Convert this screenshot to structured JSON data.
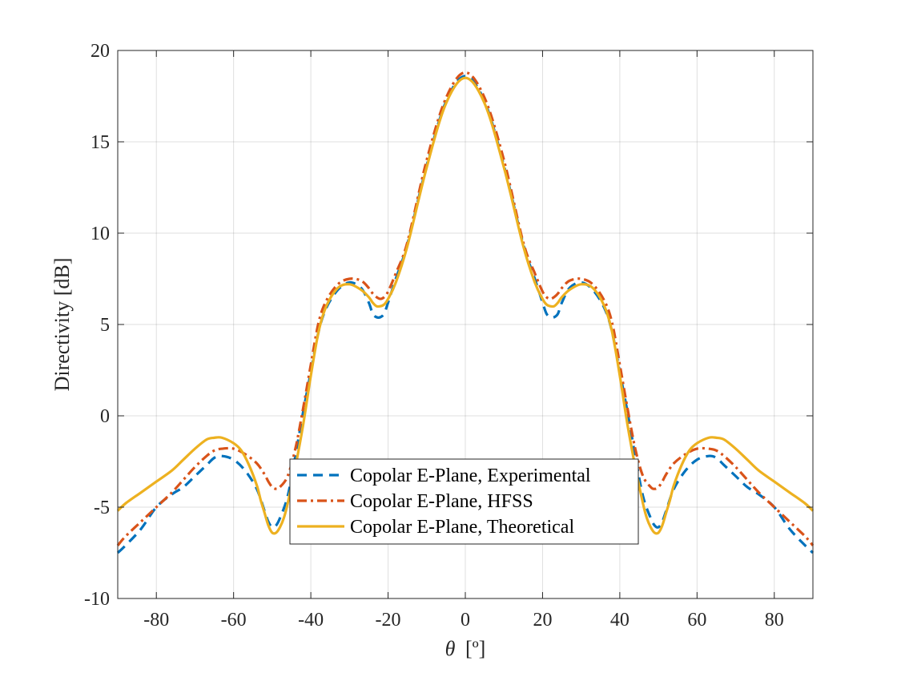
{
  "chart_data": {
    "type": "line",
    "xlabel_symbol": "θ",
    "xlabel_unit": "[º]",
    "ylabel": "Directivity [dB]",
    "xlim": [
      -90,
      90
    ],
    "ylim": [
      -10,
      20
    ],
    "xticks": [
      -80,
      -60,
      -40,
      -20,
      0,
      20,
      40,
      60,
      80
    ],
    "xtick_labels": [
      "-80",
      "-60",
      "-40",
      "-20",
      "0",
      "20",
      "40",
      "60",
      "80"
    ],
    "yticks": [
      -10,
      -5,
      0,
      5,
      10,
      15,
      20
    ],
    "ytick_labels": [
      "-10",
      "-5",
      "0",
      "5",
      "10",
      "15",
      "20"
    ],
    "grid": true,
    "legend_position": "lower-center",
    "series": [
      {
        "name": "Copolar E-Plane, Experimental",
        "color": "#0072BD",
        "dash": "dashed",
        "x": [
          0,
          5,
          10,
          15,
          18,
          20,
          21,
          22,
          23,
          24,
          25,
          27,
          30,
          33,
          36,
          38,
          40,
          42,
          44,
          46,
          48,
          49,
          50,
          51,
          52,
          54,
          57,
          60,
          63,
          65,
          67,
          70,
          73,
          76,
          80,
          84,
          88,
          90
        ],
        "y": [
          18.6,
          17.2,
          13.7,
          9.4,
          7.5,
          6.2,
          5.6,
          5.4,
          5.4,
          5.6,
          6.2,
          7.0,
          7.3,
          6.9,
          5.9,
          4.6,
          2.4,
          0.2,
          -2.2,
          -4.4,
          -5.6,
          -6.0,
          -6.1,
          -5.8,
          -5.2,
          -4.0,
          -3.0,
          -2.4,
          -2.2,
          -2.3,
          -2.7,
          -3.3,
          -3.9,
          -4.3,
          -5.0,
          -6.2,
          -7.1,
          -7.5
        ]
      },
      {
        "name": "Copolar E-Plane, HFSS",
        "color": "#D95319",
        "dash": "dashdot",
        "x": [
          0,
          5,
          10,
          15,
          18,
          20,
          21,
          22,
          23,
          24,
          25,
          27,
          30,
          33,
          36,
          38,
          40,
          42,
          44,
          46,
          48,
          49,
          50,
          51,
          52,
          54,
          57,
          60,
          63,
          65,
          67,
          70,
          73,
          76,
          80,
          84,
          88,
          90
        ],
        "y": [
          18.8,
          17.4,
          14.0,
          9.5,
          7.8,
          6.8,
          6.5,
          6.4,
          6.5,
          6.7,
          7.0,
          7.4,
          7.5,
          7.2,
          6.3,
          5.1,
          2.8,
          0.4,
          -1.8,
          -3.3,
          -3.9,
          -4.0,
          -3.9,
          -3.6,
          -3.2,
          -2.6,
          -2.1,
          -1.8,
          -1.8,
          -1.9,
          -2.2,
          -2.8,
          -3.5,
          -4.2,
          -5.0,
          -5.8,
          -6.6,
          -7.1
        ]
      },
      {
        "name": "Copolar E-Plane, Theoretical",
        "color": "#EDB120",
        "dash": "solid",
        "x": [
          0,
          5,
          10,
          15,
          18,
          20,
          21,
          22,
          23,
          24,
          25,
          27,
          30,
          33,
          36,
          38,
          40,
          42,
          44,
          46,
          47,
          48,
          49,
          50,
          51,
          52,
          53,
          54,
          56,
          58,
          60,
          63,
          65,
          67,
          70,
          73,
          76,
          80,
          84,
          88,
          90
        ],
        "y": [
          18.5,
          17.1,
          13.6,
          9.3,
          7.3,
          6.4,
          6.1,
          6.0,
          6.0,
          6.2,
          6.5,
          6.9,
          7.2,
          7.0,
          6.0,
          4.6,
          2.2,
          -0.5,
          -2.8,
          -4.8,
          -5.6,
          -6.1,
          -6.4,
          -6.4,
          -6.0,
          -5.3,
          -4.6,
          -3.8,
          -2.7,
          -1.9,
          -1.5,
          -1.2,
          -1.2,
          -1.3,
          -1.8,
          -2.4,
          -3.0,
          -3.6,
          -4.2,
          -4.8,
          -5.2
        ]
      }
    ]
  }
}
